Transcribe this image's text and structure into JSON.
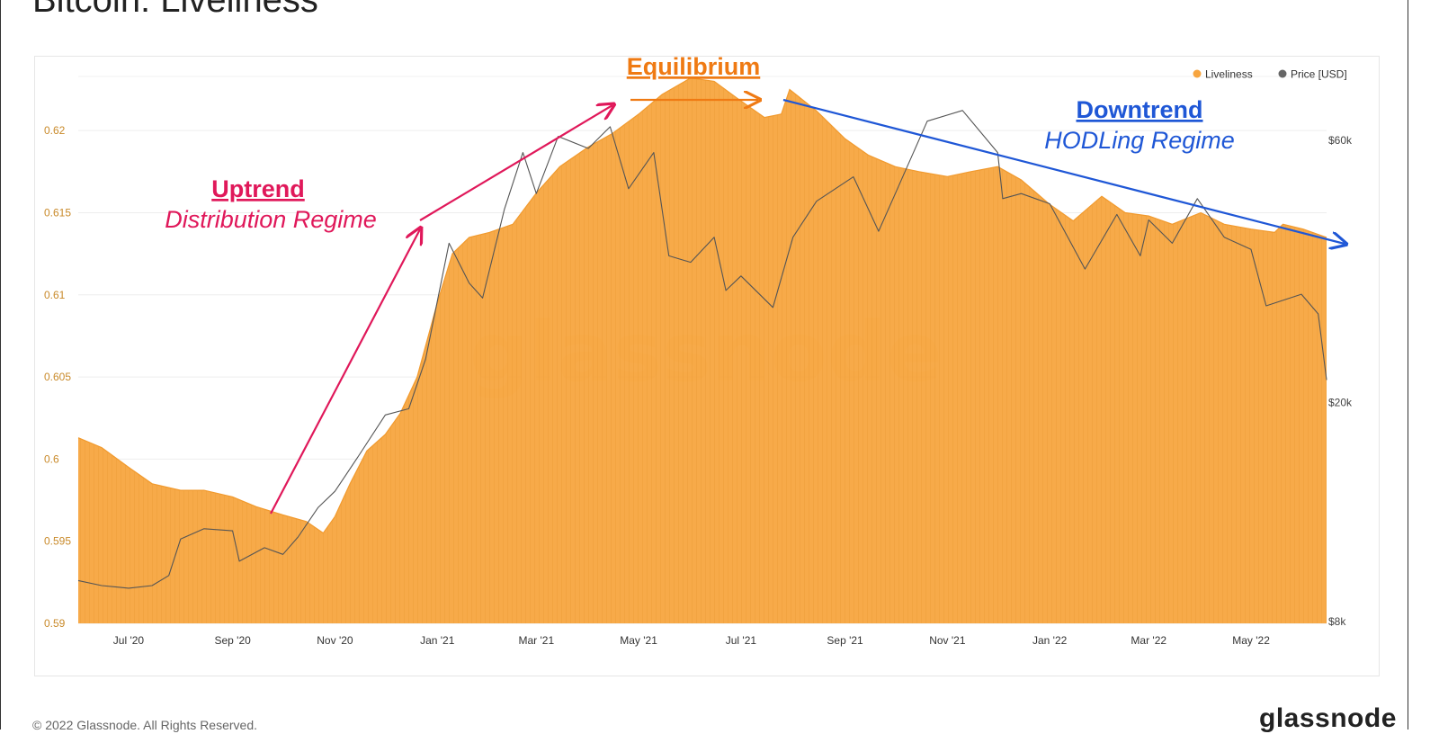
{
  "page": {
    "title": "Bitcoin: Liveliness",
    "copyright": "© 2022 Glassnode. All Rights Reserved.",
    "logo": "glassnode"
  },
  "colors": {
    "liveliness": "#f7a53f",
    "price": "#555555",
    "uptrend": "#e0185a",
    "equilibrium": "#ef7a13",
    "downtrend": "#1f57d6",
    "axis_left": "#c98a2a",
    "axis_right": "#444444"
  },
  "chart_data": {
    "type": "area",
    "title": "Bitcoin: Liveliness",
    "watermark": "glassnode",
    "legend": {
      "placement": "top-right",
      "items": [
        "Liveliness",
        "Price [USD]"
      ]
    },
    "x_ticks": [
      "Jul '20",
      "Sep '20",
      "Nov '20",
      "Jan '21",
      "Mar '21",
      "May '21",
      "Jul '21",
      "Sep '21",
      "Nov '21",
      "Jan '22",
      "Mar '22",
      "May '22"
    ],
    "y_left": {
      "ticks": [
        "0.59",
        "0.595",
        "0.6",
        "0.605",
        "0.61",
        "0.615",
        "0.62"
      ],
      "range": [
        0.59,
        0.6245
      ]
    },
    "y_right": {
      "scale": "log",
      "ticks": [
        "$8k",
        "$20k",
        "$60k"
      ],
      "tick_values": [
        8000,
        20000,
        60000
      ]
    },
    "series": [
      {
        "name": "Liveliness",
        "type": "area",
        "points": [
          [
            "2020-06-01",
            0.6013
          ],
          [
            "2020-06-15",
            0.6007
          ],
          [
            "2020-07-01",
            0.5995
          ],
          [
            "2020-07-15",
            0.5985
          ],
          [
            "2020-08-01",
            0.5981
          ],
          [
            "2020-08-15",
            0.5981
          ],
          [
            "2020-09-01",
            0.5977
          ],
          [
            "2020-09-15",
            0.5971
          ],
          [
            "2020-10-01",
            0.5966
          ],
          [
            "2020-10-15",
            0.5962
          ],
          [
            "2020-10-25",
            0.5955
          ],
          [
            "2020-11-01",
            0.5965
          ],
          [
            "2020-11-10",
            0.5985
          ],
          [
            "2020-11-20",
            0.6005
          ],
          [
            "2020-12-01",
            0.6015
          ],
          [
            "2020-12-10",
            0.6028
          ],
          [
            "2020-12-20",
            0.605
          ],
          [
            "2021-01-01",
            0.6095
          ],
          [
            "2021-01-10",
            0.6125
          ],
          [
            "2021-01-20",
            0.6135
          ],
          [
            "2021-02-01",
            0.6138
          ],
          [
            "2021-02-15",
            0.6143
          ],
          [
            "2021-03-01",
            0.6162
          ],
          [
            "2021-03-15",
            0.6178
          ],
          [
            "2021-04-01",
            0.619
          ],
          [
            "2021-04-15",
            0.6198
          ],
          [
            "2021-05-01",
            0.621
          ],
          [
            "2021-05-15",
            0.6222
          ],
          [
            "2021-06-01",
            0.6232
          ],
          [
            "2021-06-15",
            0.623
          ],
          [
            "2021-07-01",
            0.6218
          ],
          [
            "2021-07-15",
            0.6208
          ],
          [
            "2021-07-25",
            0.621
          ],
          [
            "2021-07-30",
            0.6225
          ],
          [
            "2021-08-15",
            0.6212
          ],
          [
            "2021-09-01",
            0.6195
          ],
          [
            "2021-09-15",
            0.6185
          ],
          [
            "2021-10-01",
            0.6178
          ],
          [
            "2021-10-15",
            0.6175
          ],
          [
            "2021-11-01",
            0.6172
          ],
          [
            "2021-11-15",
            0.6175
          ],
          [
            "2021-12-01",
            0.6178
          ],
          [
            "2021-12-15",
            0.617
          ],
          [
            "2022-01-01",
            0.6155
          ],
          [
            "2022-01-15",
            0.6145
          ],
          [
            "2022-02-01",
            0.616
          ],
          [
            "2022-02-15",
            0.615
          ],
          [
            "2022-03-01",
            0.6148
          ],
          [
            "2022-03-15",
            0.6143
          ],
          [
            "2022-04-01",
            0.615
          ],
          [
            "2022-04-15",
            0.6143
          ],
          [
            "2022-05-01",
            0.614
          ],
          [
            "2022-05-15",
            0.6138
          ],
          [
            "2022-05-20",
            0.6143
          ],
          [
            "2022-06-01",
            0.614
          ],
          [
            "2022-06-15",
            0.6135
          ]
        ]
      },
      {
        "name": "Price [USD]",
        "type": "line",
        "points": [
          [
            "2020-06-01",
            9500
          ],
          [
            "2020-06-15",
            9300
          ],
          [
            "2020-07-01",
            9200
          ],
          [
            "2020-07-15",
            9300
          ],
          [
            "2020-07-25",
            9700
          ],
          [
            "2020-08-01",
            11300
          ],
          [
            "2020-08-15",
            11800
          ],
          [
            "2020-09-01",
            11700
          ],
          [
            "2020-09-05",
            10300
          ],
          [
            "2020-09-20",
            10900
          ],
          [
            "2020-10-01",
            10600
          ],
          [
            "2020-10-10",
            11400
          ],
          [
            "2020-10-22",
            12900
          ],
          [
            "2020-11-01",
            13800
          ],
          [
            "2020-11-15",
            16000
          ],
          [
            "2020-12-01",
            19000
          ],
          [
            "2020-12-15",
            19500
          ],
          [
            "2020-12-25",
            24000
          ],
          [
            "2021-01-08",
            39000
          ],
          [
            "2021-01-20",
            33000
          ],
          [
            "2021-01-28",
            31000
          ],
          [
            "2021-02-10",
            45000
          ],
          [
            "2021-02-21",
            57000
          ],
          [
            "2021-03-01",
            48000
          ],
          [
            "2021-03-14",
            61000
          ],
          [
            "2021-04-01",
            58000
          ],
          [
            "2021-04-14",
            63500
          ],
          [
            "2021-04-25",
            49000
          ],
          [
            "2021-05-10",
            57000
          ],
          [
            "2021-05-19",
            37000
          ],
          [
            "2021-06-01",
            36000
          ],
          [
            "2021-06-15",
            40000
          ],
          [
            "2021-06-22",
            32000
          ],
          [
            "2021-07-01",
            34000
          ],
          [
            "2021-07-20",
            29800
          ],
          [
            "2021-08-01",
            40000
          ],
          [
            "2021-08-15",
            46500
          ],
          [
            "2021-09-06",
            51500
          ],
          [
            "2021-09-21",
            41000
          ],
          [
            "2021-10-01",
            48000
          ],
          [
            "2021-10-20",
            65000
          ],
          [
            "2021-11-10",
            68000
          ],
          [
            "2021-12-01",
            57000
          ],
          [
            "2021-12-04",
            47000
          ],
          [
            "2021-12-15",
            48000
          ],
          [
            "2022-01-01",
            46000
          ],
          [
            "2022-01-22",
            35000
          ],
          [
            "2022-02-10",
            44000
          ],
          [
            "2022-02-24",
            37000
          ],
          [
            "2022-03-01",
            43000
          ],
          [
            "2022-03-15",
            39000
          ],
          [
            "2022-03-30",
            47000
          ],
          [
            "2022-04-15",
            40000
          ],
          [
            "2022-05-01",
            38000
          ],
          [
            "2022-05-10",
            30000
          ],
          [
            "2022-05-31",
            31500
          ],
          [
            "2022-06-10",
            29000
          ],
          [
            "2022-06-15",
            22000
          ]
        ]
      }
    ],
    "annotations": [
      {
        "label": "Uptrend",
        "sublabel": "Distribution Regime"
      },
      {
        "label": "Equilibrium"
      },
      {
        "label": "Downtrend",
        "sublabel": "HODLing Regime"
      }
    ]
  }
}
